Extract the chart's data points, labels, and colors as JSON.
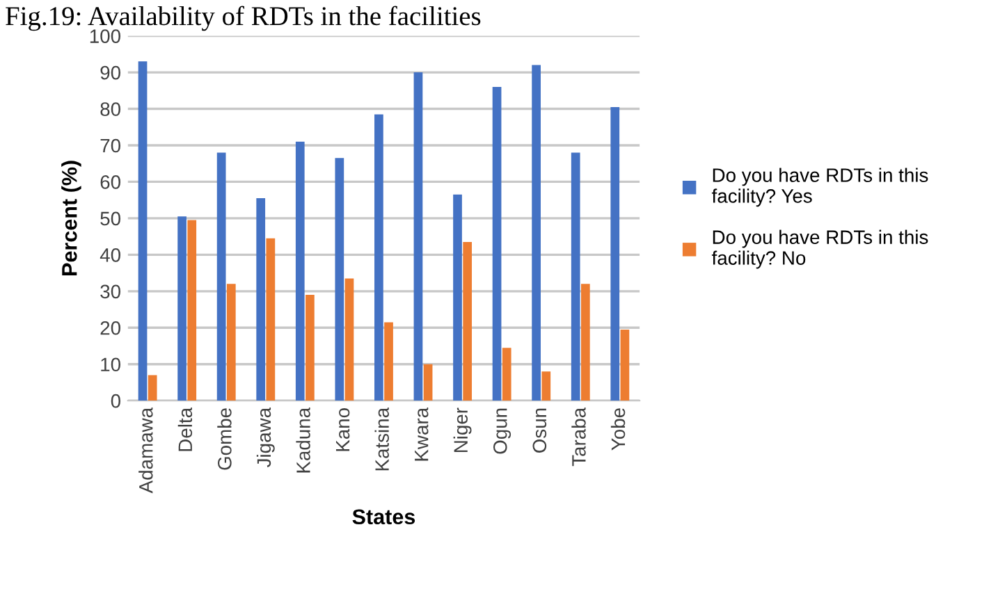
{
  "chart_data": {
    "type": "bar",
    "title": "Fig.19: Availability of RDTs in the facilities",
    "xlabel": "States",
    "ylabel": "Percent (%)",
    "categories": [
      "Adamawa",
      "Delta",
      "Gombe",
      "Jigawa",
      "Kaduna",
      "Kano",
      "Katsina",
      "Kwara",
      "Niger",
      "Ogun",
      "Osun",
      "Taraba",
      "Yobe"
    ],
    "series": [
      {
        "name": "Do you have RDTs in this facility? Yes",
        "color": "#4472c4",
        "values": [
          93,
          50.5,
          68,
          55.5,
          71,
          66.5,
          78.5,
          90,
          56.5,
          86,
          92,
          68,
          80.5
        ]
      },
      {
        "name": "Do you have RDTs in this facility? No",
        "color": "#ed7d31",
        "values": [
          7,
          49.5,
          32,
          44.5,
          29,
          33.5,
          21.5,
          10,
          43.5,
          14.5,
          8,
          32,
          19.5
        ]
      }
    ],
    "ylim": [
      0,
      100
    ],
    "yticks": [
      0,
      10,
      20,
      30,
      40,
      50,
      60,
      70,
      80,
      90,
      100
    ],
    "grid": "y",
    "legend": "right"
  }
}
